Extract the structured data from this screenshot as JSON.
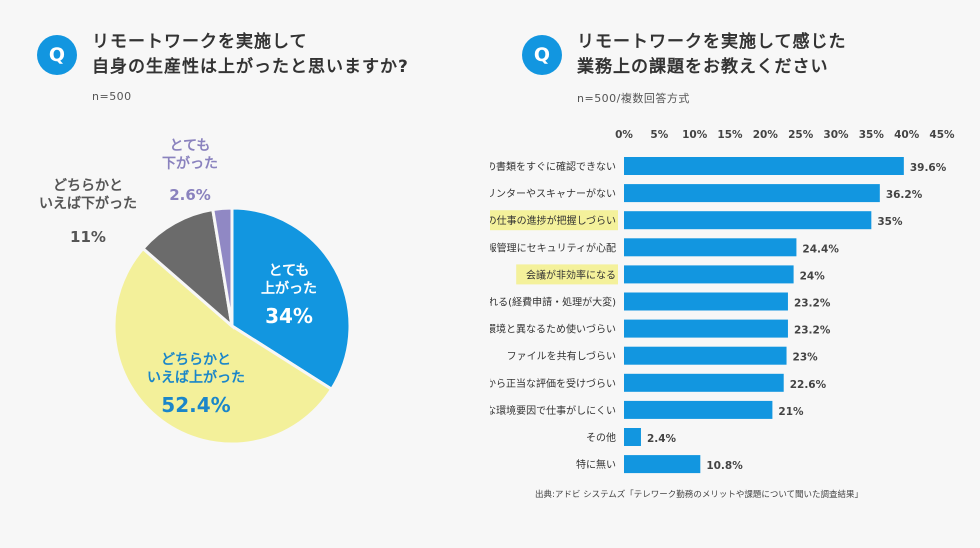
{
  "left": {
    "badge": "Q",
    "title_line1": "リモートワークを実施して",
    "title_line2": "自身の生産性は上がったと思いますか?",
    "note": "n=500"
  },
  "right": {
    "badge": "Q",
    "title_line1": "リモートワークを実施して感じた",
    "title_line2": "業務上の課題をお教えください",
    "note": "n=500/複数回答方式"
  },
  "source": "出典:アドビ システムズ「テレワーク勤務のメリットや課題について聞いた調査結果」",
  "colors": {
    "blue": "#1296e0",
    "yellow": "#f3f09a",
    "gray": "#6b6b6b",
    "purple": "#9088c4",
    "highlight": "#f4f19b"
  },
  "chart_data": [
    {
      "type": "pie",
      "slices": [
        {
          "label_lines": [
            "とても",
            "上がった"
          ],
          "value": 34,
          "value_label": "34%",
          "color": "#1296e0"
        },
        {
          "label_lines": [
            "どちらかと",
            "いえば上がった"
          ],
          "value": 52.4,
          "value_label": "52.4%",
          "color": "#f3f09a"
        },
        {
          "label_lines": [
            "どちらかと",
            "いえば下がった"
          ],
          "value": 11,
          "value_label": "11%",
          "color": "#6b6b6b"
        },
        {
          "label_lines": [
            "とても",
            "下がった"
          ],
          "value": 2.6,
          "value_label": "2.6%",
          "color": "#9088c4"
        }
      ]
    },
    {
      "type": "bar",
      "orientation": "horizontal",
      "xlim": [
        0,
        45
      ],
      "ticks": [
        0,
        5,
        10,
        15,
        20,
        25,
        30,
        35,
        40,
        45
      ],
      "tick_labels": [
        "0%",
        "5%",
        "10%",
        "15%",
        "20%",
        "25%",
        "30%",
        "35%",
        "40%",
        "45%"
      ],
      "categories": [
        "会社にある紙の書類をすぐに確認できない",
        "プリンターやスキャナーがない",
        "自分以外の仕事の進捗が把握しづらい",
        "データや情報管理にセキュリティが心配",
        "会議が非効率になる",
        "稟議や書類処理が遅れる(経費申請・処理が大変)",
        "いつものPC/モバイル環境と異なるため使いづらい",
        "ファイルを共有しづらい",
        "会社から正当な評価を受けづらい",
        "机や椅子など物理的な環境要因で仕事がしにくい",
        "その他",
        "特に無い"
      ],
      "values": [
        39.6,
        36.2,
        35,
        24.4,
        24,
        23.2,
        23.2,
        23,
        22.6,
        21,
        2.4,
        10.8
      ],
      "value_labels": [
        "39.6%",
        "36.2%",
        "35%",
        "24.4%",
        "24%",
        "23.2%",
        "23.2%",
        "23%",
        "22.6%",
        "21%",
        "2.4%",
        "10.8%"
      ],
      "highlighted": [
        false,
        false,
        true,
        false,
        true,
        false,
        false,
        false,
        false,
        false,
        false,
        false
      ],
      "bar_color": "#1296e0"
    }
  ]
}
